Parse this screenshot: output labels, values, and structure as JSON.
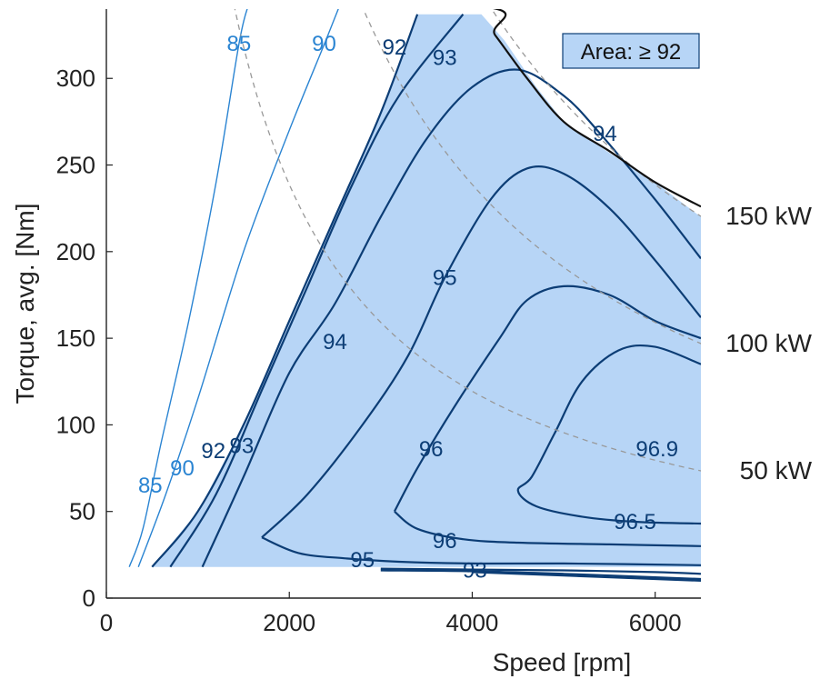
{
  "chart_data": {
    "type": "contour",
    "xlabel": "Speed [rpm]",
    "ylabel": "Torque, avg. [Nm]",
    "xlim": [
      0,
      6500
    ],
    "ylim": [
      0,
      340
    ],
    "xticks": [
      0,
      2000,
      4000,
      6000
    ],
    "yticks": [
      0,
      50,
      100,
      150,
      200,
      250,
      300
    ],
    "legend": {
      "text": "Area: ≥ 92",
      "placement": "top-right",
      "color": "#b7d5f6"
    },
    "colors": {
      "region": "#b7d5f6",
      "dark": "#0c3d75",
      "light": "#2a84d2",
      "envelope": "#111111",
      "power": "#999999"
    },
    "envelope": [
      [
        0,
        342
      ],
      [
        4000,
        342
      ],
      [
        4250,
        325
      ],
      [
        4600,
        300
      ],
      [
        5000,
        275
      ],
      [
        5500,
        258
      ],
      [
        6000,
        240
      ],
      [
        6500,
        226
      ]
    ],
    "region": [
      [
        500,
        18
      ],
      [
        1000,
        50
      ],
      [
        1500,
        100
      ],
      [
        2000,
        160
      ],
      [
        2500,
        220
      ],
      [
        3000,
        280
      ],
      [
        3400,
        337
      ],
      [
        4100,
        337
      ],
      [
        4350,
        322
      ],
      [
        4700,
        295
      ],
      [
        5000,
        275
      ],
      [
        5500,
        257
      ],
      [
        6000,
        240
      ],
      [
        6500,
        220
      ],
      [
        6500,
        18
      ]
    ],
    "power_curves": [
      {
        "label": "150 kW",
        "kw": 150
      },
      {
        "label": "100 kW",
        "kw": 100
      },
      {
        "label": "50 kW",
        "kw": 50
      }
    ],
    "contours": [
      {
        "level": "85",
        "style": "light",
        "label": "85",
        "label_at": [
          1450,
          320
        ],
        "label2": "85",
        "label2_at": [
          480,
          65
        ],
        "points": [
          [
            250,
            18
          ],
          [
            400,
            40
          ],
          [
            600,
            90
          ],
          [
            900,
            160
          ],
          [
            1200,
            240
          ],
          [
            1450,
            320
          ],
          [
            1550,
            342
          ]
        ]
      },
      {
        "level": "90",
        "style": "light",
        "label": "90",
        "label_at": [
          2380,
          320
        ],
        "label2": "90",
        "label2_at": [
          830,
          75
        ],
        "points": [
          [
            350,
            18
          ],
          [
            650,
            60
          ],
          [
            1000,
            115
          ],
          [
            1500,
            200
          ],
          [
            2000,
            270
          ],
          [
            2400,
            322
          ],
          [
            2550,
            342
          ]
        ]
      },
      {
        "level": "92",
        "style": "dark",
        "label": "92",
        "label_at": [
          3150,
          318
        ],
        "label2": "92",
        "label2_at": [
          1170,
          85
        ],
        "points": [
          [
            500,
            18
          ],
          [
            1000,
            50
          ],
          [
            1500,
            100
          ],
          [
            2000,
            160
          ],
          [
            2500,
            220
          ],
          [
            3000,
            280
          ],
          [
            3400,
            337
          ]
        ]
      },
      {
        "level": "93",
        "style": "dark",
        "label": "93",
        "label_at": [
          3700,
          312
        ],
        "label2": "93",
        "label2_at": [
          1480,
          88
        ],
        "points": [
          [
            700,
            18
          ],
          [
            1200,
            60
          ],
          [
            1700,
            120
          ],
          [
            2200,
            180
          ],
          [
            2700,
            240
          ],
          [
            3200,
            290
          ],
          [
            3900,
            337
          ]
        ]
      },
      {
        "level": "94",
        "style": "dark",
        "label": "94",
        "label_at": [
          2500,
          148
        ],
        "label2": "94",
        "label2_at": [
          5450,
          268
        ],
        "points": [
          [
            1050,
            18
          ],
          [
            1500,
            70
          ],
          [
            2000,
            130
          ],
          [
            2500,
            170
          ],
          [
            3000,
            220
          ],
          [
            3500,
            265
          ],
          [
            4000,
            295
          ],
          [
            4500,
            305
          ],
          [
            5000,
            290
          ],
          [
            5400,
            268
          ],
          [
            6000,
            230
          ],
          [
            6500,
            196
          ]
        ]
      },
      {
        "level": "95",
        "style": "dark",
        "label": "95",
        "label_at": [
          3700,
          185
        ],
        "label2": "95",
        "label2_at": [
          2800,
          22
        ],
        "points": [
          [
            1700,
            35
          ],
          [
            2200,
            60
          ],
          [
            2800,
            100
          ],
          [
            3300,
            140
          ],
          [
            3700,
            185
          ],
          [
            4200,
            230
          ],
          [
            4600,
            248
          ],
          [
            5000,
            245
          ],
          [
            5500,
            225
          ],
          [
            6000,
            195
          ],
          [
            6500,
            162
          ]
        ]
      },
      {
        "level": "95-low",
        "style": "dark",
        "label": "",
        "label_at": null,
        "label2": "",
        "label2_at": null,
        "points": [
          [
            1700,
            35
          ],
          [
            2100,
            26
          ],
          [
            2600,
            23
          ],
          [
            3200,
            21
          ],
          [
            4000,
            20
          ],
          [
            5000,
            20
          ],
          [
            6500,
            19
          ]
        ]
      },
      {
        "level": "96",
        "style": "dark",
        "label": "96",
        "label_at": [
          3550,
          86
        ],
        "label2": "96",
        "label2_at": [
          3700,
          33
        ],
        "points": [
          [
            3150,
            50
          ],
          [
            3400,
            75
          ],
          [
            3800,
            110
          ],
          [
            4300,
            150
          ],
          [
            4600,
            172
          ],
          [
            5000,
            180
          ],
          [
            5500,
            175
          ],
          [
            6000,
            160
          ],
          [
            6500,
            150
          ]
        ]
      },
      {
        "level": "96-low",
        "style": "dark",
        "label": "",
        "label_at": null,
        "label2": "",
        "label2_at": null,
        "points": [
          [
            3150,
            50
          ],
          [
            3400,
            40
          ],
          [
            3900,
            34
          ],
          [
            4500,
            32
          ],
          [
            5500,
            31
          ],
          [
            6500,
            30
          ]
        ]
      },
      {
        "level": "96.5",
        "style": "dark",
        "label": "96.5",
        "label_at": [
          5780,
          44
        ],
        "label2": "",
        "label2_at": null,
        "points": [
          [
            6500,
            135
          ],
          [
            6000,
            145
          ],
          [
            5600,
            143
          ],
          [
            5200,
            125
          ],
          [
            4900,
            95
          ],
          [
            4650,
            70
          ],
          [
            4500,
            62
          ],
          [
            4700,
            53
          ],
          [
            5200,
            47
          ],
          [
            5800,
            44
          ],
          [
            6500,
            43
          ]
        ]
      },
      {
        "level": "96.9",
        "style": "dark",
        "label": "96.9",
        "label_at": [
          6020,
          86
        ],
        "label2": "",
        "label2_at": null,
        "points": []
      },
      {
        "level": "low-a",
        "style": "dark",
        "label": "",
        "label_at": null,
        "label2": "",
        "label2_at": null,
        "points": [
          [
            3000,
            17
          ],
          [
            4000,
            16.5
          ],
          [
            5000,
            16
          ],
          [
            6000,
            15
          ],
          [
            6500,
            14
          ]
        ]
      },
      {
        "level": "low-b",
        "style": "dark",
        "label": "",
        "label_at": null,
        "label2": "",
        "label2_at": null,
        "points": [
          [
            3000,
            16
          ],
          [
            4000,
            15.5
          ],
          [
            5000,
            14
          ],
          [
            6000,
            12
          ],
          [
            6500,
            11
          ]
        ]
      },
      {
        "level": "low-c",
        "style": "dark",
        "label": "",
        "label_at": null,
        "label2": "",
        "label2_at": null,
        "points": [
          [
            4000,
            15
          ],
          [
            5000,
            13
          ],
          [
            6000,
            11
          ],
          [
            6500,
            10
          ]
        ]
      }
    ],
    "cluster_label": {
      "text": "93",
      "at": [
        3850,
        16
      ]
    }
  }
}
